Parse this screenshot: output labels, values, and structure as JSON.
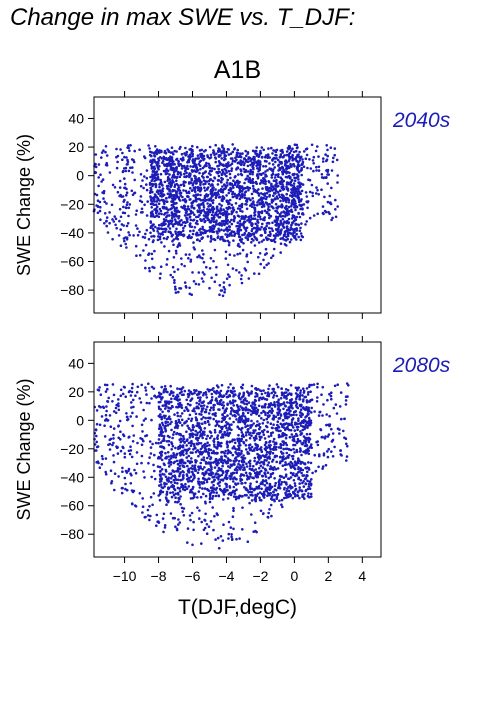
{
  "figure": {
    "title": "Change in max SWE vs. T_DJF:",
    "scenario": "A1B",
    "point_color": "#1c1cb8",
    "label_color": "#1c1cb8"
  },
  "chart_data": [
    {
      "type": "scatter",
      "period_label": "2040s",
      "xlabel": "T(DJF,degC)",
      "ylabel": "SWE Change (%)",
      "xlim": [
        -11.8,
        5.1
      ],
      "ylim": [
        -96,
        55
      ],
      "xticks": [
        -10,
        -8,
        -6,
        -4,
        -2,
        0,
        2,
        4
      ],
      "yticks": [
        40,
        20,
        0,
        -20,
        -40,
        -60,
        -80
      ],
      "show_xtick_labels": false,
      "cloud": {
        "x_range": [
          -11.8,
          2.6
        ],
        "y_max_approx": 22,
        "y_min_approx": -85,
        "dense_x_range": [
          -8.5,
          0.5
        ],
        "dense_y_range": [
          -45,
          18
        ]
      }
    },
    {
      "type": "scatter",
      "period_label": "2080s",
      "xlabel": "T(DJF,degC)",
      "ylabel": "SWE Change (%)",
      "xlim": [
        -11.8,
        5.1
      ],
      "ylim": [
        -96,
        55
      ],
      "xticks": [
        -10,
        -8,
        -6,
        -4,
        -2,
        0,
        2,
        4
      ],
      "yticks": [
        40,
        20,
        0,
        -20,
        -40,
        -60,
        -80
      ],
      "show_xtick_labels": true,
      "xtick_labels": [
        "−10",
        "−8",
        "−6",
        "−4",
        "−2",
        "0",
        "2",
        "4"
      ],
      "cloud": {
        "x_range": [
          -11.8,
          3.2
        ],
        "y_max_approx": 26,
        "y_min_approx": -90,
        "dense_x_range": [
          -8.0,
          1.0
        ],
        "dense_y_range": [
          -55,
          22
        ]
      }
    }
  ]
}
